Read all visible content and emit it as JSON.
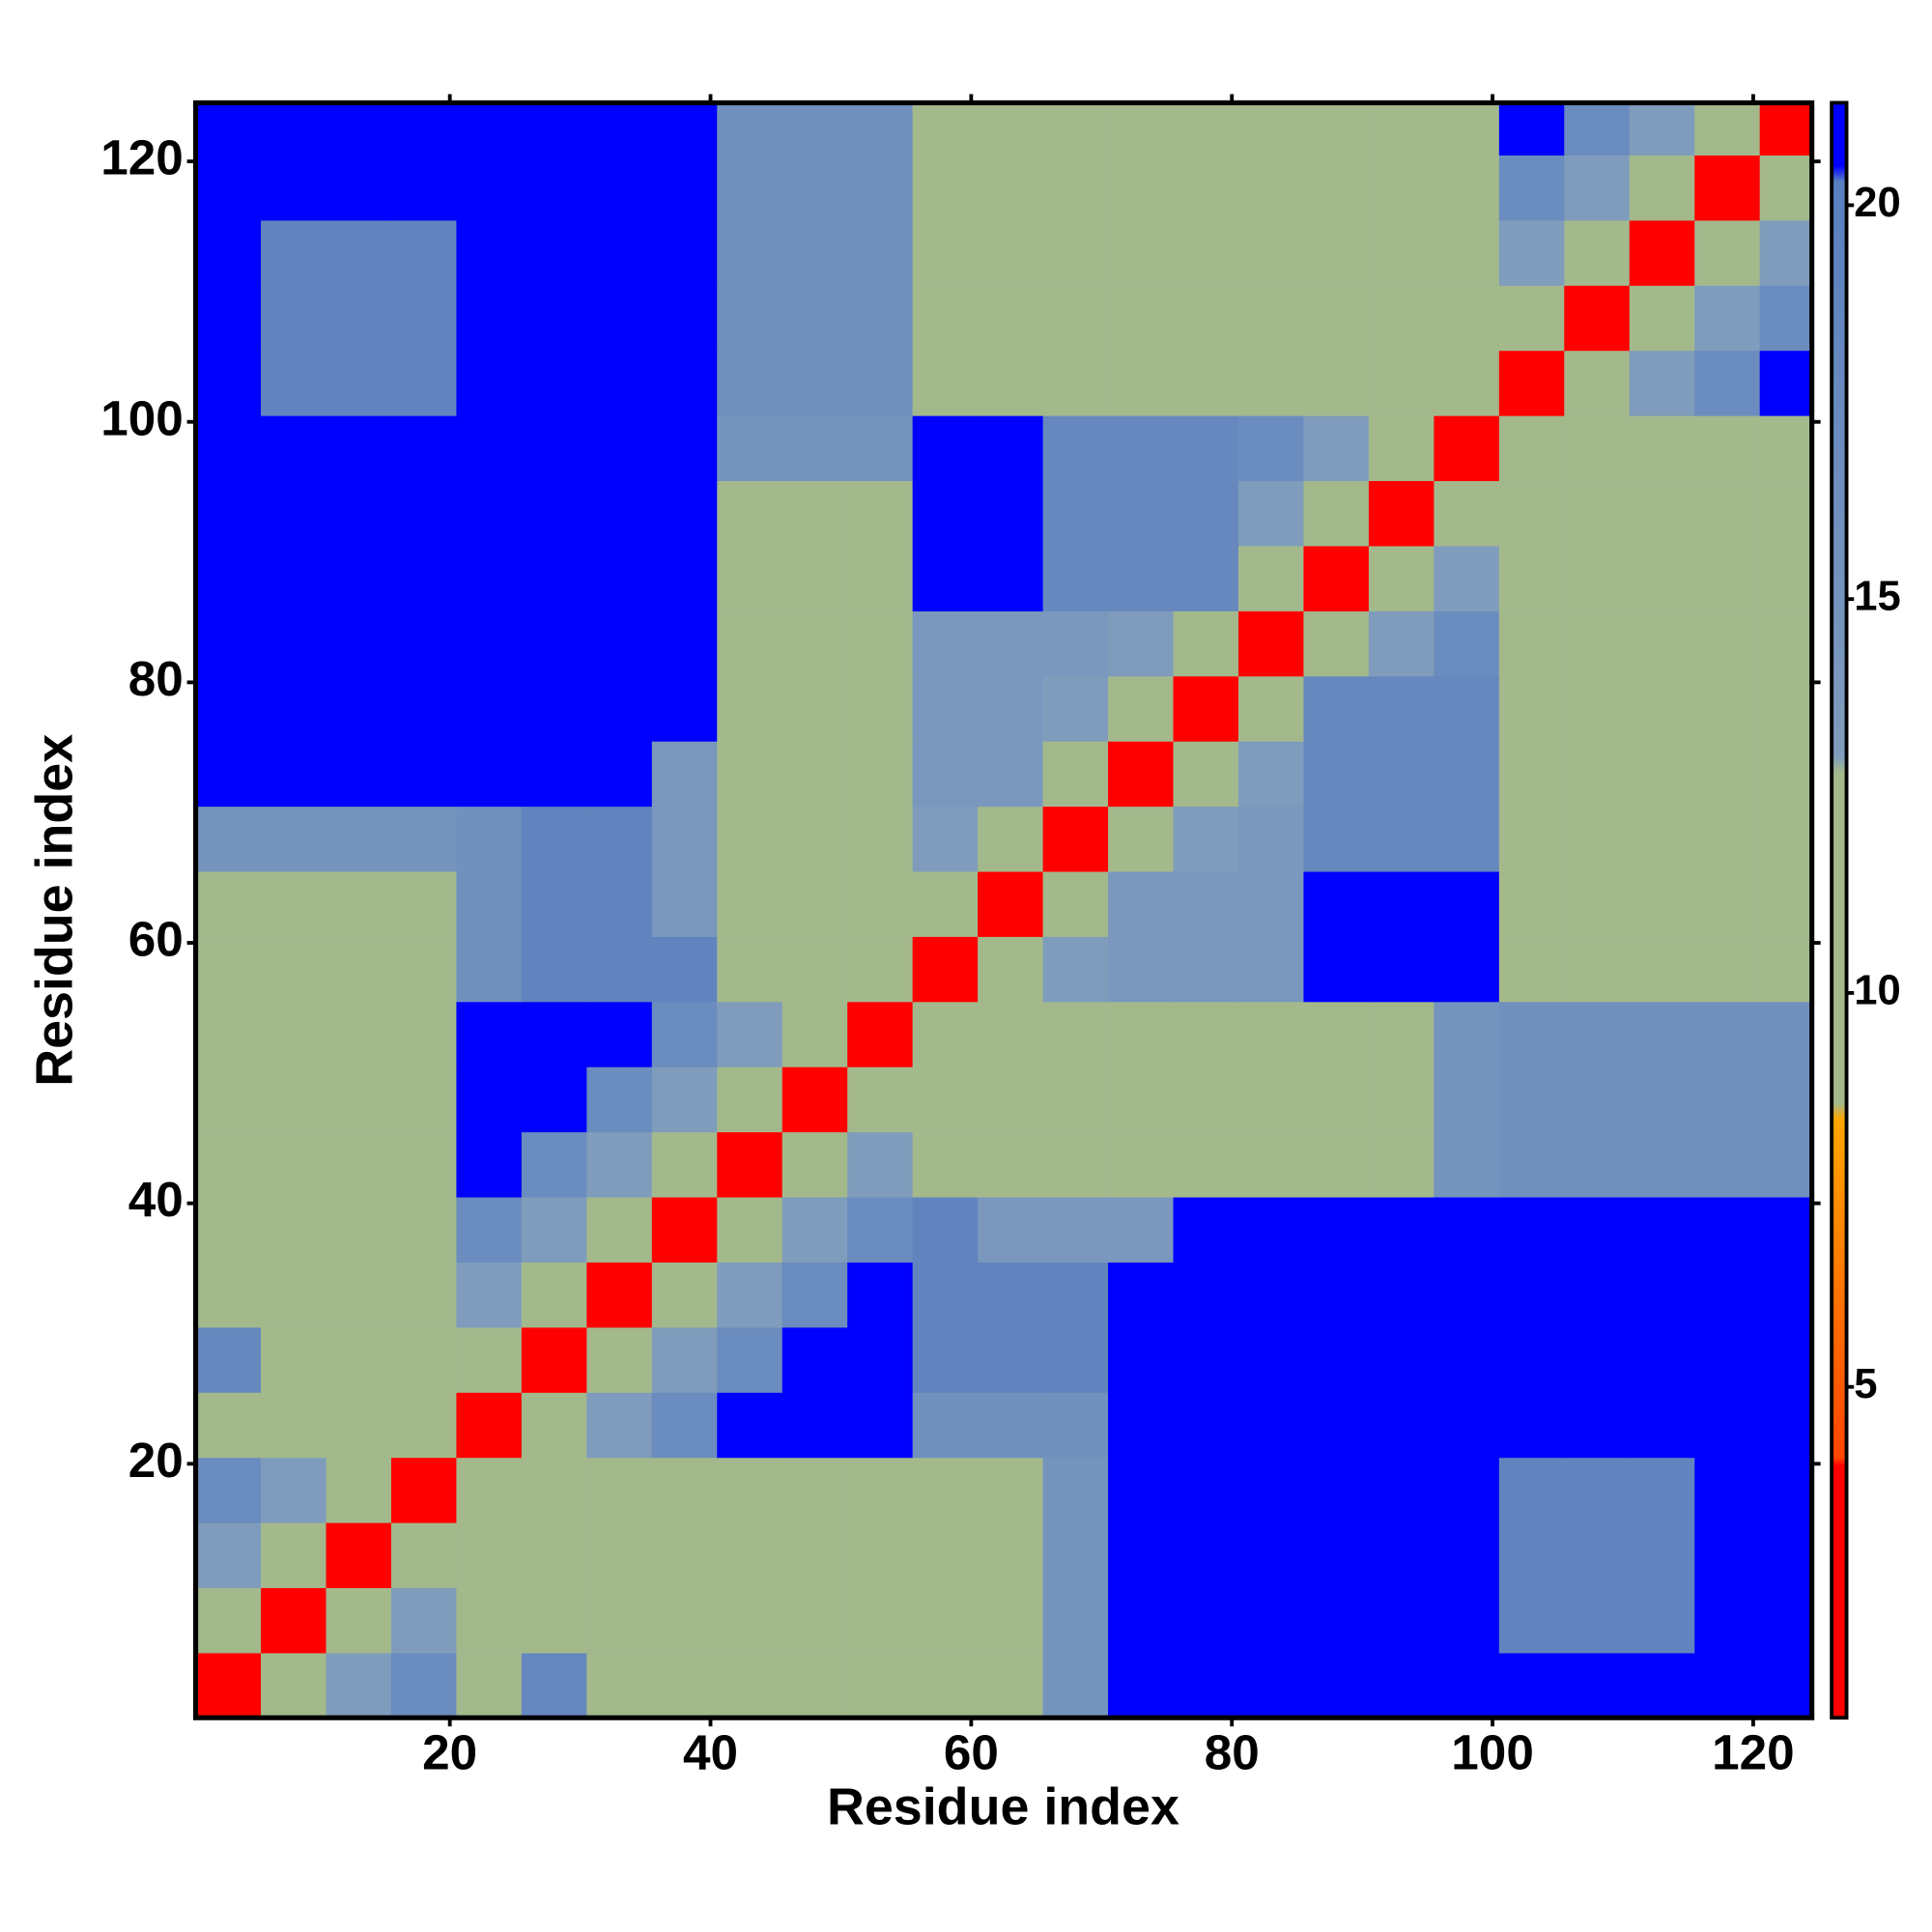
{
  "chart_data": {
    "type": "heatmap",
    "xlabel": "Residue index",
    "ylabel": "Residue index",
    "xbins": [
      0.5,
      5.5,
      10.5,
      15.5,
      20.5,
      25.5,
      30.5,
      35.5,
      40.5,
      45.5,
      50.5,
      55.5,
      60.5,
      65.5,
      70.5,
      75.5,
      80.5,
      85.5,
      90.5,
      95.5,
      100.5,
      105.5,
      110.5,
      115.5,
      120.5,
      124.5
    ],
    "ybins": [
      0.5,
      5.5,
      10.5,
      15.5,
      20.5,
      25.5,
      30.5,
      35.5,
      40.5,
      45.5,
      50.5,
      55.5,
      60.5,
      65.5,
      70.5,
      75.5,
      80.5,
      85.5,
      90.5,
      95.5,
      100.5,
      105.5,
      110.5,
      115.5,
      120.5,
      124.5
    ],
    "z": [
      [
        3,
        10,
        13,
        17,
        12,
        18,
        12,
        12,
        12,
        12,
        12,
        12,
        12,
        15,
        21,
        21,
        21,
        21,
        21,
        21,
        21,
        21,
        21,
        21,
        21
      ],
      [
        10,
        3,
        10,
        13,
        12,
        12,
        12,
        12,
        12,
        12,
        12,
        12,
        12,
        15,
        21,
        21,
        21,
        21,
        21,
        21,
        19,
        19,
        19,
        21,
        21
      ],
      [
        13,
        10,
        3,
        10,
        12,
        12,
        9,
        12,
        12,
        12,
        12,
        12,
        12,
        15,
        21,
        21,
        21,
        21,
        21,
        21,
        19,
        19,
        19,
        21,
        21
      ],
      [
        17,
        13,
        10,
        3,
        10,
        12,
        12,
        12,
        12,
        12,
        12,
        12,
        9,
        15,
        21,
        21,
        21,
        21,
        21,
        21,
        19,
        19,
        19,
        21,
        21
      ],
      [
        12,
        12,
        12,
        10,
        3,
        10,
        13,
        17,
        21,
        21,
        21,
        16,
        16,
        16,
        21,
        21,
        21,
        21,
        21,
        21,
        21,
        21,
        21,
        21,
        21
      ],
      [
        18,
        12,
        12,
        12,
        10,
        3,
        10,
        13,
        17,
        21,
        21,
        19,
        19,
        19,
        21,
        21,
        21,
        21,
        21,
        21,
        21,
        21,
        21,
        21,
        21
      ],
      [
        12,
        12,
        9,
        12,
        13,
        10,
        3,
        10,
        13,
        17,
        21,
        19,
        19,
        19,
        21,
        21,
        21,
        21,
        21,
        21,
        21,
        21,
        21,
        21,
        21
      ],
      [
        12,
        12,
        12,
        12,
        17,
        13,
        10,
        3,
        10,
        13,
        17,
        19,
        14,
        14,
        14,
        21,
        21,
        21,
        21,
        21,
        21,
        21,
        21,
        21,
        21
      ],
      [
        12,
        12,
        12,
        12,
        21,
        17,
        13,
        10,
        3,
        10,
        13,
        12,
        12,
        12,
        12,
        12,
        12,
        12,
        12,
        15,
        16,
        16,
        16,
        16,
        16
      ],
      [
        12,
        12,
        12,
        12,
        21,
        21,
        17,
        13,
        10,
        3,
        10,
        12,
        12,
        9,
        12,
        12,
        12,
        12,
        12,
        15,
        16,
        16,
        16,
        16,
        16
      ],
      [
        12,
        12,
        12,
        12,
        21,
        21,
        21,
        17,
        13,
        10,
        3,
        10,
        12,
        12,
        12,
        12,
        12,
        12,
        12,
        15,
        16,
        16,
        16,
        16,
        16
      ],
      [
        12,
        12,
        12,
        12,
        16,
        19,
        19,
        19,
        12,
        12,
        10,
        3,
        10,
        13,
        14,
        14,
        14,
        21,
        21,
        21,
        12,
        12,
        12,
        12,
        12
      ],
      [
        12,
        12,
        12,
        9,
        16,
        19,
        19,
        14,
        12,
        12,
        12,
        10,
        3,
        10,
        14,
        14,
        14,
        21,
        21,
        21,
        12,
        9,
        12,
        12,
        12
      ],
      [
        15,
        15,
        15,
        15,
        16,
        19,
        19,
        14,
        12,
        9,
        12,
        13,
        10,
        3,
        10,
        13,
        14,
        18,
        18,
        18,
        12,
        12,
        12,
        12,
        12
      ],
      [
        21,
        21,
        21,
        21,
        21,
        21,
        21,
        14,
        12,
        12,
        12,
        14,
        14,
        10,
        3,
        10,
        13,
        18,
        18,
        18,
        12,
        12,
        9,
        12,
        12
      ],
      [
        21,
        21,
        21,
        21,
        21,
        21,
        21,
        21,
        12,
        12,
        12,
        14,
        14,
        13,
        10,
        3,
        10,
        18,
        18,
        18,
        12,
        12,
        12,
        12,
        12
      ],
      [
        21,
        21,
        21,
        21,
        21,
        21,
        21,
        21,
        12,
        12,
        12,
        14,
        14,
        14,
        13,
        10,
        3,
        10,
        13,
        17,
        12,
        12,
        12,
        12,
        12
      ],
      [
        21,
        21,
        21,
        21,
        21,
        21,
        21,
        21,
        12,
        12,
        12,
        21,
        21,
        18,
        18,
        18,
        10,
        3,
        10,
        13,
        12,
        12,
        9,
        12,
        12
      ],
      [
        21,
        21,
        21,
        21,
        21,
        21,
        21,
        21,
        12,
        12,
        12,
        21,
        21,
        18,
        18,
        18,
        13,
        10,
        3,
        10,
        12,
        12,
        12,
        12,
        12
      ],
      [
        21,
        21,
        21,
        21,
        21,
        21,
        21,
        21,
        15,
        15,
        15,
        21,
        21,
        18,
        18,
        18,
        17,
        13,
        10,
        3,
        10,
        12,
        12,
        9,
        12
      ],
      [
        21,
        19,
        19,
        19,
        21,
        21,
        21,
        21,
        16,
        16,
        16,
        12,
        12,
        12,
        12,
        12,
        12,
        12,
        12,
        10,
        3,
        10,
        13,
        17,
        21
      ],
      [
        21,
        19,
        19,
        19,
        21,
        21,
        21,
        21,
        16,
        16,
        16,
        12,
        9,
        12,
        12,
        12,
        12,
        12,
        12,
        12,
        10,
        3,
        10,
        13,
        17
      ],
      [
        21,
        19,
        19,
        19,
        21,
        21,
        21,
        21,
        16,
        16,
        16,
        12,
        12,
        12,
        9,
        12,
        12,
        9,
        12,
        12,
        13,
        10,
        3,
        10,
        13
      ],
      [
        21,
        21,
        21,
        21,
        21,
        21,
        21,
        21,
        16,
        16,
        16,
        12,
        12,
        12,
        12,
        12,
        12,
        12,
        12,
        9,
        17,
        13,
        10,
        3,
        10
      ],
      [
        21,
        21,
        21,
        21,
        21,
        21,
        21,
        21,
        16,
        16,
        16,
        12,
        12,
        12,
        12,
        12,
        12,
        12,
        12,
        12,
        21,
        17,
        13,
        10,
        3
      ]
    ],
    "xlim": [
      0.5,
      124.5
    ],
    "ylim": [
      0.5,
      124.5
    ],
    "xticks": [
      20,
      40,
      60,
      80,
      100,
      120
    ],
    "yticks": [
      20,
      40,
      60,
      80,
      100,
      120
    ],
    "zlim": [
      0.8,
      21.3
    ],
    "zticks": [
      5,
      10,
      15,
      20
    ],
    "colorscale": [
      [
        0.8,
        "#ff0000"
      ],
      [
        4,
        "#ff0000"
      ],
      [
        4.1,
        "#ff4500"
      ],
      [
        8.4,
        "#ffa500"
      ],
      [
        8.6,
        "#a3b98c"
      ],
      [
        12.8,
        "#a3b98c"
      ],
      [
        13,
        "#7f9cbc"
      ],
      [
        20.3,
        "#5a7fc0"
      ],
      [
        20.5,
        "#0000ff"
      ],
      [
        21.3,
        "#0000ff"
      ]
    ]
  }
}
